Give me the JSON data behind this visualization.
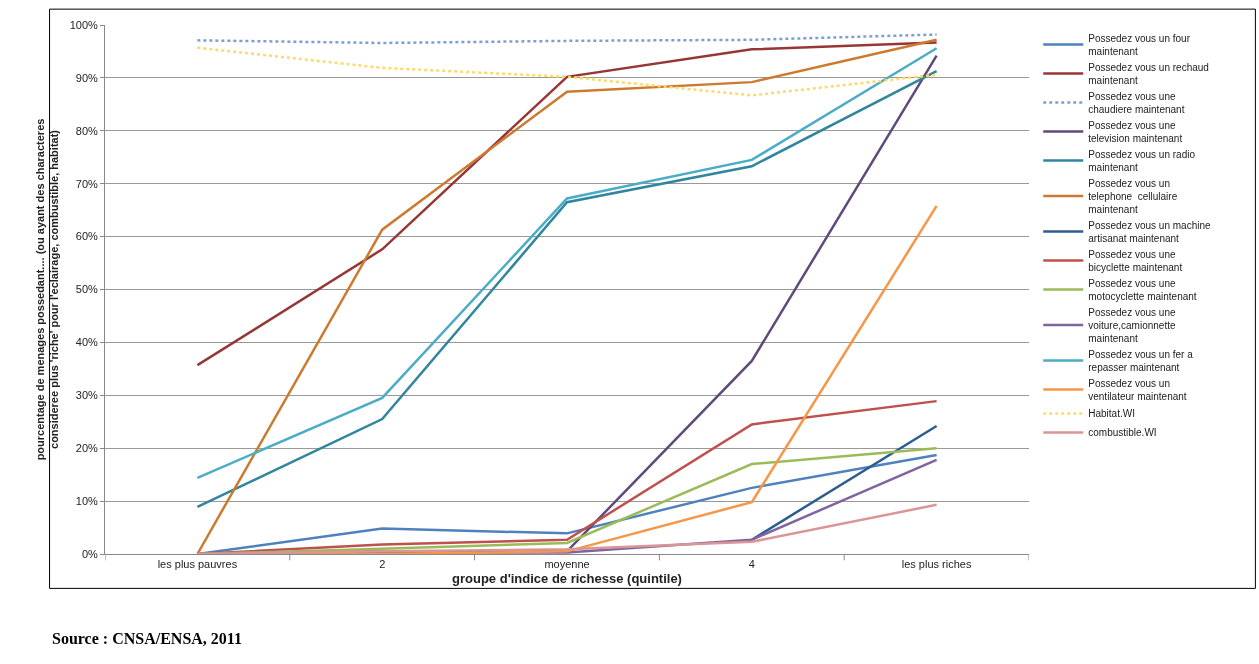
{
  "chart_data": {
    "type": "line",
    "xlabel": "groupe d'indice de richesse (quintile)",
    "ylabel": "pourcentage de menages possedant.... (ou ayant des characteres consideree plus 'riche' pour l'eclairage, combustible, habitat)",
    "categories": [
      "les plus pauvres",
      "2",
      "moyenne",
      "4",
      "les plus riches"
    ],
    "ylim": [
      0,
      100
    ],
    "yticks": [
      {
        "value": 0,
        "label": "0%"
      },
      {
        "value": 10,
        "label": "10%"
      },
      {
        "value": 20,
        "label": "20%"
      },
      {
        "value": 30,
        "label": "30%"
      },
      {
        "value": 40,
        "label": "40%"
      },
      {
        "value": 50,
        "label": "50%"
      },
      {
        "value": 60,
        "label": "60%"
      },
      {
        "value": 70,
        "label": "70%"
      },
      {
        "value": 80,
        "label": "80%"
      },
      {
        "value": 90,
        "label": "90%"
      },
      {
        "value": 100,
        "label": "100%"
      }
    ],
    "grid": "y",
    "legend": "right",
    "marker": "none",
    "series": [
      {
        "name": "Possedez vous un four maintenant",
        "color": "#4f81bd",
        "values": [
          0,
          4.8,
          3.9,
          12.5,
          18.7
        ]
      },
      {
        "name": "Possedez vous un rechaud maintenant",
        "color": "#953735",
        "values": [
          35.7,
          57.6,
          90.2,
          95.4,
          96.7
        ]
      },
      {
        "name": "Possedez vous une chaudiere maintenant",
        "color": "#7ba0d0",
        "line_style": "dotted",
        "values": [
          97.1,
          96.6,
          97.0,
          97.2,
          98.2
        ]
      },
      {
        "name": "Possedez vous une television maintenant",
        "color": "#604a7b",
        "values": [
          0,
          0.5,
          0.5,
          36.5,
          94.2
        ]
      },
      {
        "name": "Possedez vous un radio maintenant",
        "color": "#31859c",
        "values": [
          8.9,
          25.5,
          66.5,
          73.3,
          91.3
        ]
      },
      {
        "name": "Possedez vous un telephone  cellulaire maintenant",
        "color": "#cc7a30",
        "values": [
          0,
          61.3,
          87.4,
          89.2,
          97.2
        ]
      },
      {
        "name": "Possedez vous un machine artisanat maintenant",
        "color": "#2c5d8f",
        "values": [
          null,
          null,
          null,
          2.7,
          24.2
        ]
      },
      {
        "name": "Possedez vous une bicyclette maintenant",
        "color": "#c0504d",
        "values": [
          0,
          1.8,
          2.7,
          24.5,
          28.9
        ]
      },
      {
        "name": "Possedez vous une motocyclette maintenant",
        "color": "#9bbb59",
        "values": [
          0,
          1.0,
          2.1,
          17.0,
          20.0
        ]
      },
      {
        "name": "Possedez vous une voiture,camionnette maintenant",
        "color": "#8064a2",
        "values": [
          0,
          0.3,
          0.3,
          2.7,
          17.8
        ]
      },
      {
        "name": "Possedez vous un fer a repasser maintenant",
        "color": "#4bacc6",
        "values": [
          14.4,
          29.5,
          67.2,
          74.5,
          95.6
        ]
      },
      {
        "name": "Possedez vous un ventilateur maintenant",
        "color": "#f79646",
        "values": [
          0,
          0,
          0.5,
          9.8,
          65.8
        ]
      },
      {
        "name": "Habitat.WI",
        "color": "#ffd966",
        "line_style": "dotted",
        "values": [
          95.7,
          91.9,
          90.2,
          86.7,
          90.6
        ]
      },
      {
        "name": "combustible.WI",
        "color": "#d99694",
        "values": [
          0,
          0.5,
          0.9,
          2.3,
          9.3
        ]
      }
    ],
    "annotations": [
      "Source : CNSA/ENSA, 2011"
    ]
  }
}
